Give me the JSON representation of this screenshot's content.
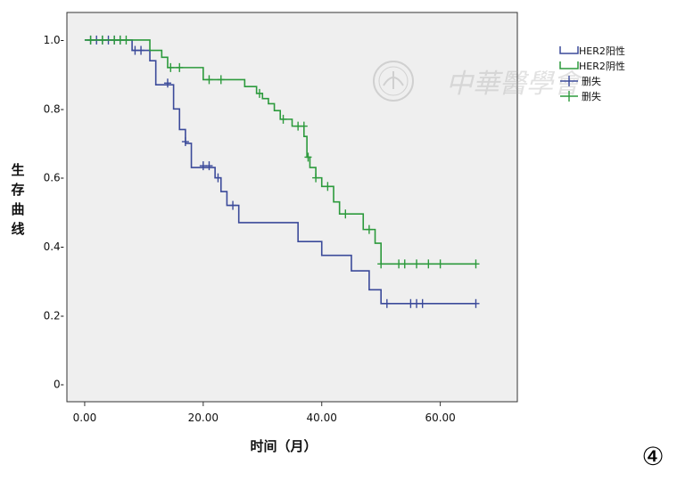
{
  "chart_data": {
    "type": "line",
    "subtype": "kaplan-meier",
    "xlabel": "时间（月）",
    "ylabel": "生存曲线",
    "xlim": [
      -3,
      73
    ],
    "ylim": [
      -0.05,
      1.08
    ],
    "xticks": [
      0,
      20,
      40,
      60
    ],
    "xtick_labels": [
      "0.00",
      "20.00",
      "40.00",
      "60.00"
    ],
    "yticks": [
      0,
      0.2,
      0.4,
      0.6,
      0.8,
      1.0
    ],
    "ytick_labels": [
      "0-",
      "0.2-",
      "0.4-",
      "0.6-",
      "0.8-",
      "1.0-"
    ],
    "grid": false,
    "legend_position": "top-right",
    "legend_entries": [
      {
        "label": "HER2阳性",
        "kind": "line",
        "color": "#3b4a9a"
      },
      {
        "label": "HER2阴性",
        "kind": "line",
        "color": "#2c9a3c"
      },
      {
        "label": "删失",
        "kind": "censor",
        "color": "#3b4a9a"
      },
      {
        "label": "删失",
        "kind": "censor",
        "color": "#2c9a3c"
      }
    ],
    "series": [
      {
        "name": "HER2阳性",
        "color": "#3b4a9a",
        "steps": [
          [
            0,
            1.0
          ],
          [
            8,
            0.97
          ],
          [
            11,
            0.94
          ],
          [
            12,
            0.87
          ],
          [
            15,
            0.8
          ],
          [
            16,
            0.74
          ],
          [
            17,
            0.7
          ],
          [
            18,
            0.63
          ],
          [
            22,
            0.6
          ],
          [
            23,
            0.56
          ],
          [
            24,
            0.52
          ],
          [
            26,
            0.47
          ],
          [
            36,
            0.415
          ],
          [
            40,
            0.375
          ],
          [
            45,
            0.33
          ],
          [
            48,
            0.275
          ],
          [
            50,
            0.235
          ],
          [
            66,
            0.235
          ]
        ],
        "censored": [
          [
            1,
            1.0
          ],
          [
            2,
            1.0
          ],
          [
            3,
            1.0
          ],
          [
            4,
            1.0
          ],
          [
            5,
            1.0
          ],
          [
            6,
            1.0
          ],
          [
            8.5,
            0.97
          ],
          [
            9.5,
            0.97
          ],
          [
            14,
            0.875
          ],
          [
            17,
            0.705
          ],
          [
            20,
            0.635
          ],
          [
            21,
            0.635
          ],
          [
            22.5,
            0.6
          ],
          [
            25,
            0.52
          ],
          [
            51,
            0.235
          ],
          [
            55,
            0.235
          ],
          [
            56,
            0.235
          ],
          [
            57,
            0.235
          ],
          [
            66,
            0.235
          ]
        ]
      },
      {
        "name": "HER2阴性",
        "color": "#2c9a3c",
        "steps": [
          [
            0,
            1.0
          ],
          [
            11,
            0.97
          ],
          [
            13,
            0.95
          ],
          [
            14,
            0.92
          ],
          [
            20,
            0.885
          ],
          [
            27,
            0.865
          ],
          [
            29,
            0.845
          ],
          [
            30,
            0.83
          ],
          [
            31,
            0.815
          ],
          [
            32,
            0.795
          ],
          [
            33,
            0.77
          ],
          [
            35,
            0.75
          ],
          [
            37,
            0.72
          ],
          [
            37.5,
            0.66
          ],
          [
            38,
            0.63
          ],
          [
            39,
            0.6
          ],
          [
            40,
            0.575
          ],
          [
            42,
            0.53
          ],
          [
            43,
            0.495
          ],
          [
            47,
            0.45
          ],
          [
            49,
            0.41
          ],
          [
            50,
            0.35
          ],
          [
            66,
            0.35
          ]
        ],
        "censored": [
          [
            1,
            1.0
          ],
          [
            3,
            1.0
          ],
          [
            5,
            1.0
          ],
          [
            6,
            1.0
          ],
          [
            7,
            1.0
          ],
          [
            14.5,
            0.92
          ],
          [
            16,
            0.92
          ],
          [
            21,
            0.885
          ],
          [
            23,
            0.885
          ],
          [
            29.5,
            0.845
          ],
          [
            33.5,
            0.77
          ],
          [
            36,
            0.75
          ],
          [
            37,
            0.75
          ],
          [
            37.7,
            0.66
          ],
          [
            39,
            0.6
          ],
          [
            41,
            0.575
          ],
          [
            44,
            0.495
          ],
          [
            48,
            0.45
          ],
          [
            50,
            0.35
          ],
          [
            53,
            0.35
          ],
          [
            54,
            0.35
          ],
          [
            56,
            0.35
          ],
          [
            58,
            0.35
          ],
          [
            60,
            0.35
          ],
          [
            66,
            0.35
          ]
        ]
      }
    ]
  },
  "watermark_text": "中華醫學會",
  "panel_label": "④"
}
